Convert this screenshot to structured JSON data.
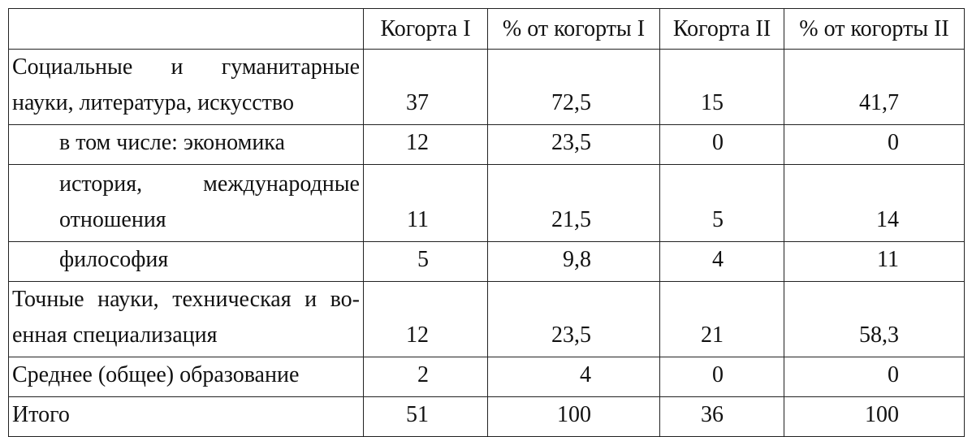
{
  "table": {
    "header": [
      "",
      "Когорта I",
      "% от когорты I",
      "Когорта II",
      "% от когорты II"
    ],
    "rows": [
      {
        "label": [
          "Социальные и гуманитарные",
          "науки, литература, искусство"
        ],
        "indent": false,
        "cells": [
          "37",
          "72,5",
          "15",
          "41,7"
        ]
      },
      {
        "label": [
          "в том числе: экономика"
        ],
        "indent": true,
        "cells": [
          "12",
          "23,5",
          "0",
          "0"
        ]
      },
      {
        "label": [
          "история, международные",
          "отношения"
        ],
        "indent": true,
        "cells": [
          "11",
          "21,5",
          "5",
          "14"
        ]
      },
      {
        "label": [
          "философия"
        ],
        "indent": true,
        "cells": [
          "5",
          "9,8",
          "4",
          "11"
        ]
      },
      {
        "label": [
          "Точные науки, техническая и во-",
          "енная специализация"
        ],
        "indent": false,
        "cells": [
          "12",
          "23,5",
          "21",
          "58,3"
        ]
      },
      {
        "label": [
          "Среднее (общее) образование"
        ],
        "indent": false,
        "cells": [
          "2",
          "4",
          "0",
          "0"
        ]
      },
      {
        "label": [
          "Итого"
        ],
        "indent": false,
        "cells": [
          "51",
          "100",
          "36",
          "100"
        ]
      }
    ]
  }
}
